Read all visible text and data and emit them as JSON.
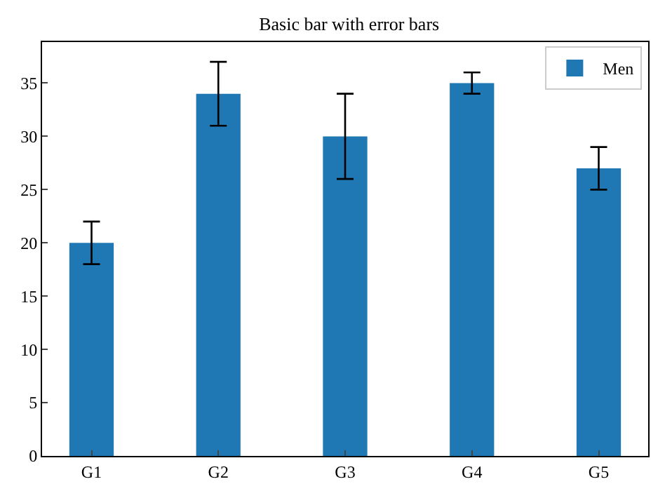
{
  "chart_data": {
    "type": "bar",
    "title": "Basic bar with error bars",
    "categories": [
      "G1",
      "G2",
      "G3",
      "G4",
      "G5"
    ],
    "series": [
      {
        "name": "Men",
        "color": "#1f77b4",
        "values": [
          20,
          34,
          30,
          35,
          27
        ],
        "errors": [
          2,
          3,
          4,
          1,
          2
        ]
      }
    ],
    "ylim": [
      0,
      38.85
    ],
    "yticks": [
      0,
      5,
      10,
      15,
      20,
      25,
      30,
      35
    ],
    "grid": false,
    "legend": "top right"
  }
}
